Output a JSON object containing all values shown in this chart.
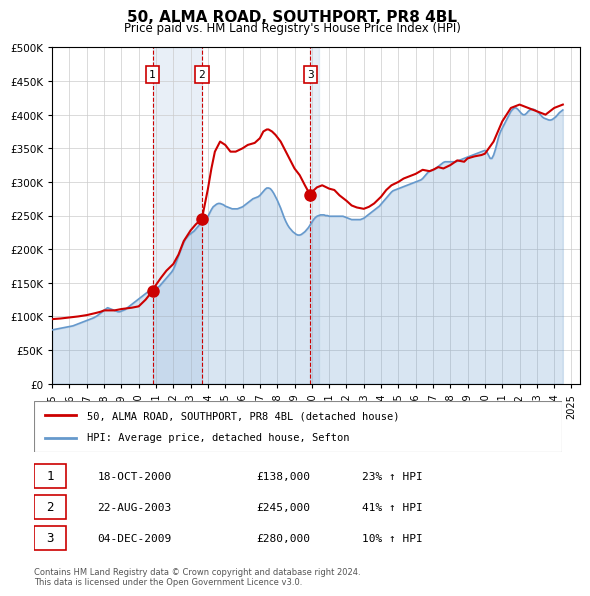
{
  "title": "50, ALMA ROAD, SOUTHPORT, PR8 4BL",
  "subtitle": "Price paid vs. HM Land Registry's House Price Index (HPI)",
  "ylabel": "",
  "xlim_start": 1995.0,
  "xlim_end": 2025.5,
  "ylim_min": 0,
  "ylim_max": 500000,
  "yticks": [
    0,
    50000,
    100000,
    150000,
    200000,
    250000,
    300000,
    350000,
    400000,
    450000,
    500000
  ],
  "ytick_labels": [
    "£0",
    "£50K",
    "£100K",
    "£150K",
    "£200K",
    "£250K",
    "£300K",
    "£350K",
    "£400K",
    "£450K",
    "£500K"
  ],
  "xticks": [
    1995,
    1996,
    1997,
    1998,
    1999,
    2000,
    2001,
    2002,
    2003,
    2004,
    2005,
    2006,
    2007,
    2008,
    2009,
    2010,
    2011,
    2012,
    2013,
    2014,
    2015,
    2016,
    2017,
    2018,
    2019,
    2020,
    2021,
    2022,
    2023,
    2024,
    2025
  ],
  "sale_dates": [
    2000.8,
    2003.65,
    2009.92
  ],
  "sale_prices": [
    138000,
    245000,
    280000
  ],
  "sale_labels": [
    "1",
    "2",
    "3"
  ],
  "red_line_color": "#cc0000",
  "blue_line_color": "#6699cc",
  "blue_fill_color": "#cce0f0",
  "vline_color": "#cc0000",
  "highlight_color": "#ddeeff",
  "grid_color": "#cccccc",
  "background_color": "#ffffff",
  "legend_line1": "50, ALMA ROAD, SOUTHPORT, PR8 4BL (detached house)",
  "legend_line2": "HPI: Average price, detached house, Sefton",
  "table_entries": [
    {
      "label": "1",
      "date": "18-OCT-2000",
      "price": "£138,000",
      "change": "23% ↑ HPI"
    },
    {
      "label": "2",
      "date": "22-AUG-2003",
      "price": "£245,000",
      "change": "41% ↑ HPI"
    },
    {
      "label": "3",
      "date": "04-DEC-2009",
      "price": "£280,000",
      "change": "10% ↑ HPI"
    }
  ],
  "footer": "Contains HM Land Registry data © Crown copyright and database right 2024.\nThis data is licensed under the Open Government Licence v3.0.",
  "hpi_data": {
    "years": [
      1995.0,
      1995.1,
      1995.2,
      1995.3,
      1995.4,
      1995.5,
      1995.6,
      1995.7,
      1995.8,
      1995.9,
      1996.0,
      1996.1,
      1996.2,
      1996.3,
      1996.4,
      1996.5,
      1996.6,
      1996.7,
      1996.8,
      1996.9,
      1997.0,
      1997.1,
      1997.2,
      1997.3,
      1997.4,
      1997.5,
      1997.6,
      1997.7,
      1997.8,
      1997.9,
      1998.0,
      1998.1,
      1998.2,
      1998.3,
      1998.4,
      1998.5,
      1998.6,
      1998.7,
      1998.8,
      1998.9,
      1999.0,
      1999.1,
      1999.2,
      1999.3,
      1999.4,
      1999.5,
      1999.6,
      1999.7,
      1999.8,
      1999.9,
      2000.0,
      2000.1,
      2000.2,
      2000.3,
      2000.4,
      2000.5,
      2000.6,
      2000.7,
      2000.8,
      2000.9,
      2001.0,
      2001.1,
      2001.2,
      2001.3,
      2001.4,
      2001.5,
      2001.6,
      2001.7,
      2001.8,
      2001.9,
      2002.0,
      2002.1,
      2002.2,
      2002.3,
      2002.4,
      2002.5,
      2002.6,
      2002.7,
      2002.8,
      2002.9,
      2003.0,
      2003.1,
      2003.2,
      2003.3,
      2003.4,
      2003.5,
      2003.6,
      2003.7,
      2003.8,
      2003.9,
      2004.0,
      2004.1,
      2004.2,
      2004.3,
      2004.4,
      2004.5,
      2004.6,
      2004.7,
      2004.8,
      2004.9,
      2005.0,
      2005.1,
      2005.2,
      2005.3,
      2005.4,
      2005.5,
      2005.6,
      2005.7,
      2005.8,
      2005.9,
      2006.0,
      2006.1,
      2006.2,
      2006.3,
      2006.4,
      2006.5,
      2006.6,
      2006.7,
      2006.8,
      2006.9,
      2007.0,
      2007.1,
      2007.2,
      2007.3,
      2007.4,
      2007.5,
      2007.6,
      2007.7,
      2007.8,
      2007.9,
      2008.0,
      2008.1,
      2008.2,
      2008.3,
      2008.4,
      2008.5,
      2008.6,
      2008.7,
      2008.8,
      2008.9,
      2009.0,
      2009.1,
      2009.2,
      2009.3,
      2009.4,
      2009.5,
      2009.6,
      2009.7,
      2009.8,
      2009.9,
      2010.0,
      2010.1,
      2010.2,
      2010.3,
      2010.4,
      2010.5,
      2010.6,
      2010.7,
      2010.8,
      2010.9,
      2011.0,
      2011.1,
      2011.2,
      2011.3,
      2011.4,
      2011.5,
      2011.6,
      2011.7,
      2011.8,
      2011.9,
      2012.0,
      2012.1,
      2012.2,
      2012.3,
      2012.4,
      2012.5,
      2012.6,
      2012.7,
      2012.8,
      2012.9,
      2013.0,
      2013.1,
      2013.2,
      2013.3,
      2013.4,
      2013.5,
      2013.6,
      2013.7,
      2013.8,
      2013.9,
      2014.0,
      2014.1,
      2014.2,
      2014.3,
      2014.4,
      2014.5,
      2014.6,
      2014.7,
      2014.8,
      2014.9,
      2015.0,
      2015.1,
      2015.2,
      2015.3,
      2015.4,
      2015.5,
      2015.6,
      2015.7,
      2015.8,
      2015.9,
      2016.0,
      2016.1,
      2016.2,
      2016.3,
      2016.4,
      2016.5,
      2016.6,
      2016.7,
      2016.8,
      2016.9,
      2017.0,
      2017.1,
      2017.2,
      2017.3,
      2017.4,
      2017.5,
      2017.6,
      2017.7,
      2017.8,
      2017.9,
      2018.0,
      2018.1,
      2018.2,
      2018.3,
      2018.4,
      2018.5,
      2018.6,
      2018.7,
      2018.8,
      2018.9,
      2019.0,
      2019.1,
      2019.2,
      2019.3,
      2019.4,
      2019.5,
      2019.6,
      2019.7,
      2019.8,
      2019.9,
      2020.0,
      2020.1,
      2020.2,
      2020.3,
      2020.4,
      2020.5,
      2020.6,
      2020.7,
      2020.8,
      2020.9,
      2021.0,
      2021.1,
      2021.2,
      2021.3,
      2021.4,
      2021.5,
      2021.6,
      2021.7,
      2021.8,
      2021.9,
      2022.0,
      2022.1,
      2022.2,
      2022.3,
      2022.4,
      2022.5,
      2022.6,
      2022.7,
      2022.8,
      2022.9,
      2023.0,
      2023.1,
      2023.2,
      2023.3,
      2023.4,
      2023.5,
      2023.6,
      2023.7,
      2023.8,
      2023.9,
      2024.0,
      2024.1,
      2024.2,
      2024.3,
      2024.4,
      2024.5
    ],
    "values": [
      80000,
      80500,
      81000,
      81500,
      82000,
      82500,
      83000,
      83500,
      84000,
      84500,
      85000,
      85500,
      86000,
      87000,
      88000,
      89000,
      90000,
      91000,
      92000,
      93000,
      94000,
      95000,
      96000,
      97000,
      98000,
      99500,
      101000,
      103000,
      105000,
      107000,
      109000,
      111000,
      113000,
      112000,
      111000,
      110000,
      109000,
      108000,
      107000,
      107000,
      108000,
      109000,
      110000,
      112000,
      114000,
      116000,
      118000,
      120000,
      122000,
      124000,
      126000,
      128000,
      130000,
      132000,
      134000,
      136000,
      137000,
      138000,
      139000,
      140000,
      141000,
      143000,
      145000,
      148000,
      151000,
      154000,
      157000,
      160000,
      163000,
      166000,
      170000,
      176000,
      183000,
      190000,
      197000,
      204000,
      210000,
      215000,
      218000,
      221000,
      223000,
      225000,
      227000,
      230000,
      233000,
      236000,
      239000,
      241000,
      243000,
      245000,
      249000,
      254000,
      259000,
      263000,
      265000,
      267000,
      268000,
      268000,
      267000,
      266000,
      264000,
      263000,
      262000,
      261000,
      260000,
      260000,
      260000,
      260000,
      261000,
      262000,
      263000,
      265000,
      267000,
      269000,
      271000,
      273000,
      275000,
      276000,
      277000,
      278000,
      280000,
      283000,
      286000,
      289000,
      291000,
      291000,
      290000,
      287000,
      283000,
      278000,
      273000,
      267000,
      261000,
      254000,
      247000,
      241000,
      236000,
      232000,
      229000,
      226000,
      224000,
      222000,
      221000,
      221000,
      222000,
      224000,
      226000,
      229000,
      232000,
      236000,
      240000,
      244000,
      247000,
      249000,
      250000,
      251000,
      251000,
      251000,
      250000,
      250000,
      249000,
      249000,
      249000,
      249000,
      249000,
      249000,
      249000,
      249000,
      249000,
      248000,
      247000,
      246000,
      245000,
      244000,
      244000,
      244000,
      244000,
      244000,
      244000,
      245000,
      246000,
      248000,
      250000,
      252000,
      254000,
      256000,
      258000,
      260000,
      262000,
      264000,
      267000,
      270000,
      273000,
      276000,
      279000,
      282000,
      285000,
      287000,
      288000,
      289000,
      290000,
      291000,
      292000,
      293000,
      294000,
      295000,
      296000,
      297000,
      298000,
      299000,
      300000,
      301000,
      302000,
      303000,
      305000,
      308000,
      311000,
      314000,
      316000,
      317000,
      318000,
      319000,
      321000,
      323000,
      325000,
      327000,
      329000,
      330000,
      330000,
      330000,
      330000,
      330000,
      330000,
      330000,
      331000,
      332000,
      333000,
      334000,
      335000,
      336000,
      337000,
      338000,
      339000,
      340000,
      341000,
      342000,
      343000,
      344000,
      345000,
      346000,
      347000,
      345000,
      340000,
      335000,
      335000,
      340000,
      348000,
      358000,
      368000,
      375000,
      380000,
      385000,
      390000,
      395000,
      400000,
      405000,
      408000,
      410000,
      410000,
      408000,
      405000,
      402000,
      400000,
      400000,
      402000,
      405000,
      407000,
      408000,
      408000,
      407000,
      405000,
      403000,
      400000,
      397000,
      395000,
      394000,
      393000,
      392000,
      392000,
      393000,
      395000,
      397000,
      400000,
      403000,
      405000,
      407000
    ]
  },
  "price_line_data": {
    "years": [
      1995.0,
      1995.5,
      1996.0,
      1996.5,
      1997.0,
      1997.5,
      1997.8,
      1998.0,
      1998.3,
      1998.6,
      1999.0,
      1999.3,
      1999.6,
      2000.0,
      2000.4,
      2000.8,
      2000.8,
      2001.0,
      2001.3,
      2001.6,
      2002.0,
      2002.3,
      2002.6,
      2003.0,
      2003.3,
      2003.65,
      2003.65,
      2004.0,
      2004.2,
      2004.4,
      2004.7,
      2005.0,
      2005.3,
      2005.6,
      2006.0,
      2006.3,
      2006.7,
      2007.0,
      2007.2,
      2007.4,
      2007.5,
      2007.7,
      2007.9,
      2008.2,
      2008.5,
      2008.8,
      2009.0,
      2009.3,
      2009.6,
      2009.92,
      2009.92,
      2010.0,
      2010.3,
      2010.6,
      2011.0,
      2011.3,
      2011.6,
      2012.0,
      2012.3,
      2012.6,
      2013.0,
      2013.3,
      2013.6,
      2014.0,
      2014.3,
      2014.6,
      2015.0,
      2015.3,
      2015.6,
      2016.0,
      2016.4,
      2016.8,
      2017.0,
      2017.3,
      2017.6,
      2018.0,
      2018.4,
      2018.8,
      2019.0,
      2019.4,
      2019.8,
      2020.0,
      2020.5,
      2021.0,
      2021.5,
      2022.0,
      2022.5,
      2023.0,
      2023.5,
      2024.0,
      2024.5
    ],
    "values": [
      96000,
      97000,
      98500,
      100000,
      102000,
      105000,
      107000,
      109000,
      109000,
      109000,
      111000,
      112000,
      113000,
      115000,
      125000,
      138000,
      138000,
      147000,
      158000,
      168000,
      178000,
      192000,
      212000,
      228000,
      237000,
      245000,
      245000,
      290000,
      320000,
      345000,
      360000,
      355000,
      345000,
      345000,
      350000,
      355000,
      358000,
      365000,
      375000,
      378000,
      378000,
      375000,
      370000,
      360000,
      345000,
      330000,
      320000,
      310000,
      295000,
      280000,
      280000,
      285000,
      292000,
      295000,
      290000,
      288000,
      280000,
      272000,
      265000,
      262000,
      260000,
      263000,
      268000,
      278000,
      288000,
      295000,
      300000,
      305000,
      308000,
      312000,
      318000,
      316000,
      318000,
      322000,
      320000,
      325000,
      332000,
      330000,
      335000,
      338000,
      340000,
      342000,
      360000,
      390000,
      410000,
      415000,
      410000,
      405000,
      400000,
      410000,
      415000
    ]
  }
}
